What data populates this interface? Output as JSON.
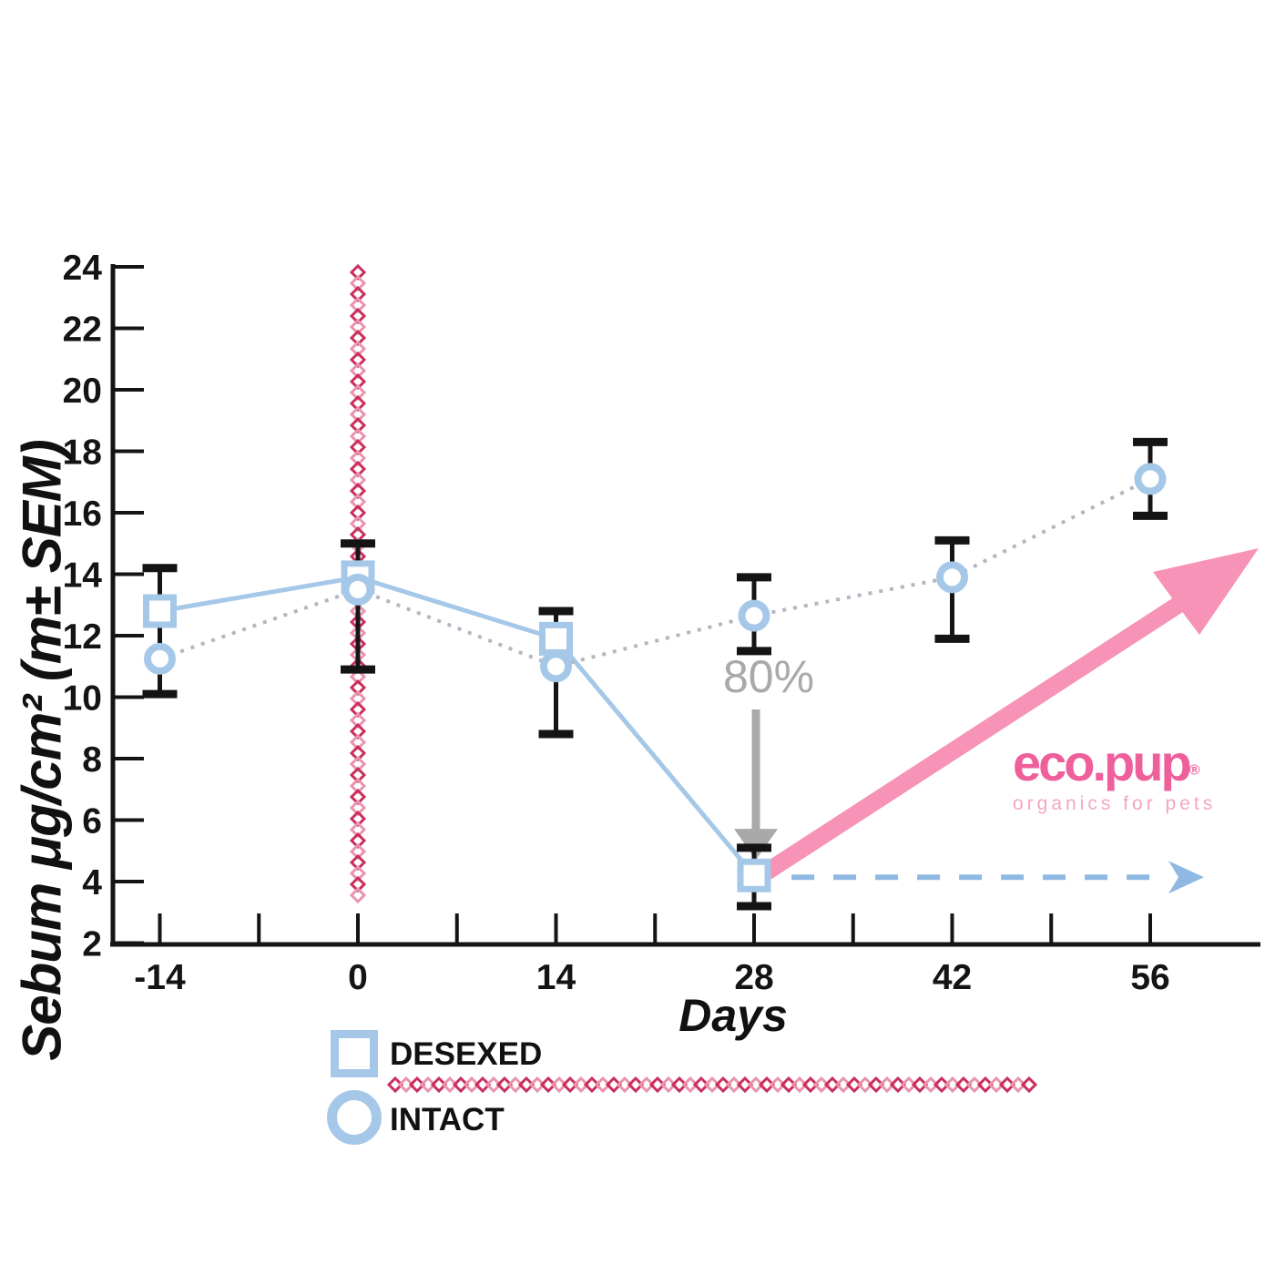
{
  "page": {
    "background": "#ffffff"
  },
  "colors": {
    "axis": "#141414",
    "series_blue": "#a6c8e8",
    "dashed_arrow_blue": "#8fb9e2",
    "dotted_line_gray": "#b5b6c0",
    "error_bar_black": "#141414",
    "annotation_gray": "#a9a9a9",
    "pink_arrow": "#f693b6",
    "diamond_dark": "#cb2e5e",
    "diamond_light": "#ea93ad",
    "logo_pink": "#ef5f9b",
    "logo_tagline_pink": "#f4a6c3"
  },
  "chart_data": {
    "type": "line",
    "title": "",
    "xlabel": "Days",
    "ylabel": "Sebum μg/cm² (m± SEM)",
    "ylim": [
      2,
      24
    ],
    "y_ticks": [
      2,
      4,
      6,
      8,
      10,
      12,
      14,
      16,
      18,
      20,
      22,
      24
    ],
    "x_tick_labels": [
      -14,
      0,
      14,
      28,
      42,
      56
    ],
    "x_minor_tick_interval_days": 7,
    "x_axis_days_range": [
      -17.3,
      63.8
    ],
    "grid": "off",
    "series": [
      {
        "name": "DESEXED",
        "marker": "square",
        "line_style": "solid",
        "x": [
          -14,
          0,
          14,
          28
        ],
        "y": [
          12.8,
          13.9,
          11.9,
          4.2
        ]
      },
      {
        "name": "INTACT",
        "marker": "circle",
        "line_style": "dotted",
        "x": [
          -14,
          0,
          14,
          28,
          42,
          56
        ],
        "y": [
          11.25,
          13.5,
          11.0,
          12.65,
          13.9,
          17.1
        ]
      }
    ],
    "error_bars": [
      {
        "x": -14,
        "lo": 10.1,
        "hi": 14.2
      },
      {
        "x": 0,
        "lo": 10.9,
        "hi": 15.0
      },
      {
        "x": 14,
        "lo": 8.8,
        "hi": 12.8
      },
      {
        "x": 28,
        "series": "DESEXED",
        "lo": 3.2,
        "hi": 5.1
      },
      {
        "x": 28,
        "series": "INTACT",
        "lo": 11.5,
        "hi": 13.9
      },
      {
        "x": 42,
        "lo": 11.9,
        "hi": 15.1
      },
      {
        "x": 56,
        "lo": 15.9,
        "hi": 18.3
      }
    ],
    "annotations": {
      "treatment_line": {
        "style": "diamond-chain",
        "x_day": 0,
        "y_from": 24,
        "y_to": 3.4
      },
      "drop_label": {
        "text": "80%",
        "x_day": 28,
        "y": 10.6
      },
      "gray_drop_arrow": {
        "x_day": 28,
        "y_from": 9.6,
        "y_to": 5.3,
        "direction": "down"
      },
      "pink_trend_arrow": {
        "from": {
          "day": 28,
          "y": 4.2
        },
        "to": {
          "day": 63.7,
          "y": 14.9
        }
      },
      "dashed_projection_arrow": {
        "from_day": 30,
        "to_day": 59.8,
        "y": 4.2
      }
    },
    "legend": {
      "items": [
        {
          "label": "DESEXED",
          "marker": "square"
        },
        {
          "label": "INTACT",
          "marker": "circle"
        }
      ],
      "separator_style": "diamond-chain"
    }
  },
  "logo": {
    "wordmark": "eco.pup",
    "registered": "®",
    "tagline": "organics for pets"
  }
}
